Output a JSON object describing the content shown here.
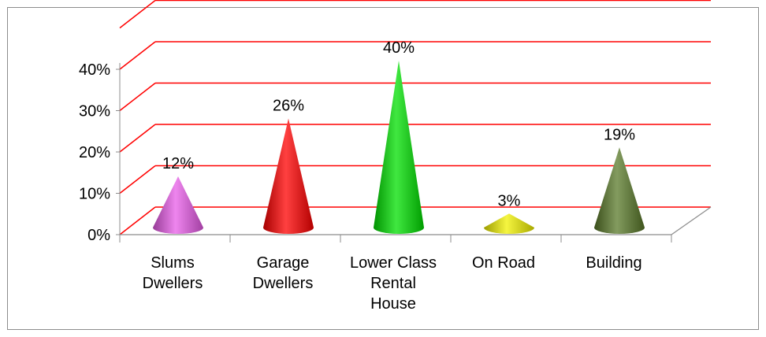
{
  "chart_data": {
    "type": "bar",
    "style": "3d-cone",
    "categories": [
      [
        "Slums",
        "Dwellers"
      ],
      [
        "Garage",
        "Dwellers"
      ],
      [
        "Lower Class",
        "Rental",
        "House"
      ],
      [
        "On Road"
      ],
      [
        "Building"
      ]
    ],
    "values": [
      12,
      26,
      40,
      3,
      19
    ],
    "data_labels": [
      "12%",
      "26%",
      "40%",
      "3%",
      "19%"
    ],
    "colors": [
      "#e85ce8",
      "#ff0000",
      "#00e000",
      "#f2f200",
      "#5a7a2a"
    ],
    "ylim": [
      0,
      40
    ],
    "yticks": [
      0,
      10,
      20,
      30,
      40
    ],
    "ytick_labels": [
      "0%",
      "10%",
      "20%",
      "30%",
      "40%"
    ],
    "gridline_color": "#ff0000",
    "grid": true,
    "legend": false,
    "title": "",
    "xlabel": "",
    "ylabel": ""
  }
}
